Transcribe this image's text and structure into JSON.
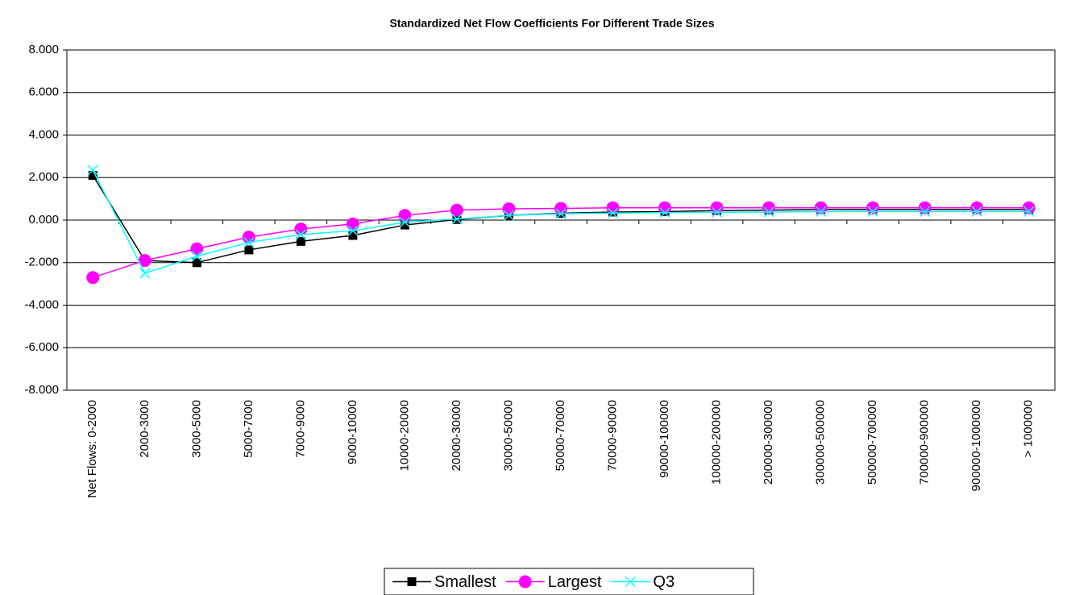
{
  "chart_data": {
    "type": "line",
    "title": "Standardized Net Flow Coefficients For Different Trade Sizes",
    "categories": [
      "Net Flows:  0-2000",
      "2000-3000",
      "3000-5000",
      "5000-7000",
      "7000-9000",
      "9000-10000",
      "10000-20000",
      "20000-30000",
      "30000-50000",
      "50000-70000",
      "70000-90000",
      "90000-100000",
      "100000-200000",
      "200000-300000",
      "300000-500000",
      "500000-700000",
      "700000-900000",
      "900000-1000000",
      "> 1000000"
    ],
    "series": [
      {
        "name": "Smallest",
        "color": "#000000",
        "marker": "square",
        "values": [
          2.1,
          -1.9,
          -2.0,
          -1.4,
          -1.0,
          -0.72,
          -0.23,
          0.03,
          0.22,
          0.32,
          0.38,
          0.4,
          0.45,
          0.47,
          0.5,
          0.5,
          0.5,
          0.5,
          0.5
        ]
      },
      {
        "name": "Largest",
        "color": "#ff00ff",
        "marker": "circle",
        "values": [
          -2.7,
          -1.9,
          -1.35,
          -0.8,
          -0.42,
          -0.18,
          0.22,
          0.47,
          0.53,
          0.55,
          0.58,
          0.58,
          0.58,
          0.58,
          0.58,
          0.58,
          0.58,
          0.58,
          0.58
        ]
      },
      {
        "name": "Q3",
        "color": "#00ffff",
        "marker": "x",
        "values": [
          2.35,
          -2.5,
          -1.7,
          -1.05,
          -0.68,
          -0.5,
          -0.1,
          0.05,
          0.22,
          0.3,
          0.33,
          0.35,
          0.37,
          0.38,
          0.4,
          0.4,
          0.4,
          0.4,
          0.4
        ]
      }
    ],
    "ylim": [
      -8,
      8
    ],
    "yticks": [
      {
        "value": -8,
        "label": "-8.000"
      },
      {
        "value": -6,
        "label": "-6.000"
      },
      {
        "value": -4,
        "label": "-4.000"
      },
      {
        "value": -2,
        "label": "-2.000"
      },
      {
        "value": 0,
        "label": "0.000"
      },
      {
        "value": 2,
        "label": "2.000"
      },
      {
        "value": 4,
        "label": "4.000"
      },
      {
        "value": 6,
        "label": "6.000"
      },
      {
        "value": 8,
        "label": "8.000"
      }
    ],
    "grid": true,
    "legend": "bottom"
  }
}
